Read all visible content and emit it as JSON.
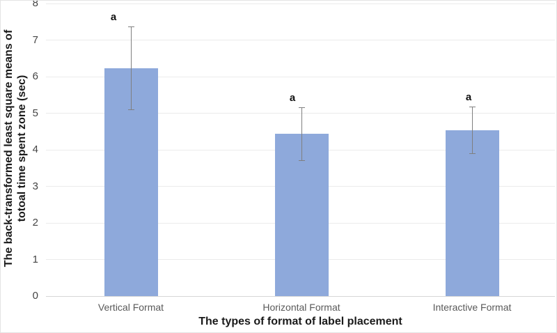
{
  "figure": {
    "background": "#ffffff",
    "border_color": "#e3e3e3"
  },
  "chart_data": {
    "type": "bar",
    "title": "",
    "xlabel": "The types of format of label placement",
    "ylabel": "The back-transformed least square means of totoal time spent zone (sec)",
    "ylabel_lines": [
      "The back-transformed least square means of",
      "totoal time spent zone (sec)"
    ],
    "categories": [
      "Vertical Format",
      "Horizontal Format",
      "Interactive Format"
    ],
    "values": [
      6.23,
      4.43,
      4.54
    ],
    "error_upper": [
      7.37,
      5.16,
      5.18
    ],
    "error_lower": [
      5.11,
      3.71,
      3.91
    ],
    "annotations": [
      "a",
      "a",
      "a"
    ],
    "yticks": [
      0,
      1,
      2,
      3,
      4,
      5,
      6,
      7,
      8
    ],
    "ylim": [
      0,
      8
    ],
    "grid": true,
    "legend": "none",
    "colors": {
      "bar_fill": "#8ea9db",
      "error_bar": "#7f7f7f",
      "gridline": "#ebebeb",
      "axis_line": "#d6d6d6",
      "tick_label": "#444444",
      "category_label": "#595959",
      "title_text": "#1a1a1a"
    }
  }
}
